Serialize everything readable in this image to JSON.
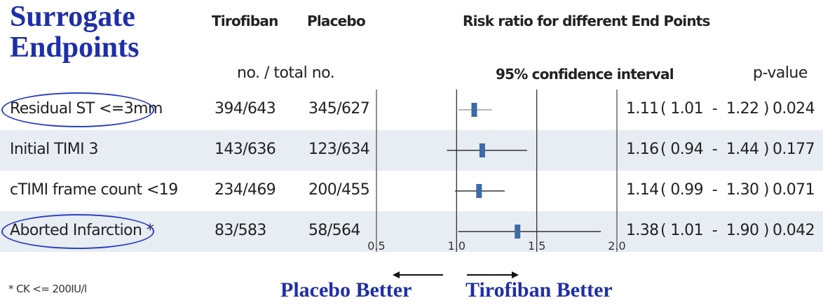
{
  "title_line1": "Surrogate",
  "title_line2": "Endpoints",
  "headers": {
    "tirofiban": "Tirofiban",
    "placebo": "Placebo",
    "counts": "no. / total no.",
    "risk_ratio": "Risk ratio for different End Points",
    "ci": "95% confidence interval",
    "pvalue": "p-value"
  },
  "footnote": "* CK <= 200IU/l",
  "bottom_left_label": "Placebo Better",
  "bottom_right_label": "Tirofiban Better",
  "colors": {
    "accent": "#1f2fa8",
    "marker": "#3d6aa8",
    "band": "#e8edf4"
  },
  "chart_data": {
    "type": "forest",
    "xlim": [
      0.5,
      2.0
    ],
    "x_ticks": [
      "0.5",
      "1.0",
      "1.5",
      "2.0"
    ],
    "reference_lines": [
      1.0,
      1.5
    ],
    "rows": [
      {
        "label": "Residual ST <=3mm",
        "tirofiban": "394/643",
        "placebo": "345/627",
        "rr": 1.11,
        "lo": 1.01,
        "hi": 1.22,
        "rr_text": "1.11",
        "ci_text": "( 1.01  -  1.22 )",
        "p": "0.024",
        "circled": true,
        "shaded": false
      },
      {
        "label": "Initial TIMI 3",
        "tirofiban": "143/636",
        "placebo": "123/634",
        "rr": 1.16,
        "lo": 0.94,
        "hi": 1.44,
        "rr_text": "1.16",
        "ci_text": "( 0.94  -  1.44 )",
        "p": "0.177",
        "circled": false,
        "shaded": true
      },
      {
        "label": "cTIMI frame count <19",
        "tirofiban": "234/469",
        "placebo": "200/455",
        "rr": 1.14,
        "lo": 0.99,
        "hi": 1.3,
        "rr_text": "1.14",
        "ci_text": "( 0.99  -  1.30 )",
        "p": "0.071",
        "circled": false,
        "shaded": false
      },
      {
        "label": "Aborted Infarction *",
        "tirofiban": "83/583",
        "placebo": "58/564",
        "rr": 1.38,
        "lo": 1.01,
        "hi": 1.9,
        "rr_text": "1.38",
        "ci_text": "( 1.01  -  1.90 )",
        "p": "0.042",
        "circled": true,
        "shaded": true
      }
    ]
  }
}
